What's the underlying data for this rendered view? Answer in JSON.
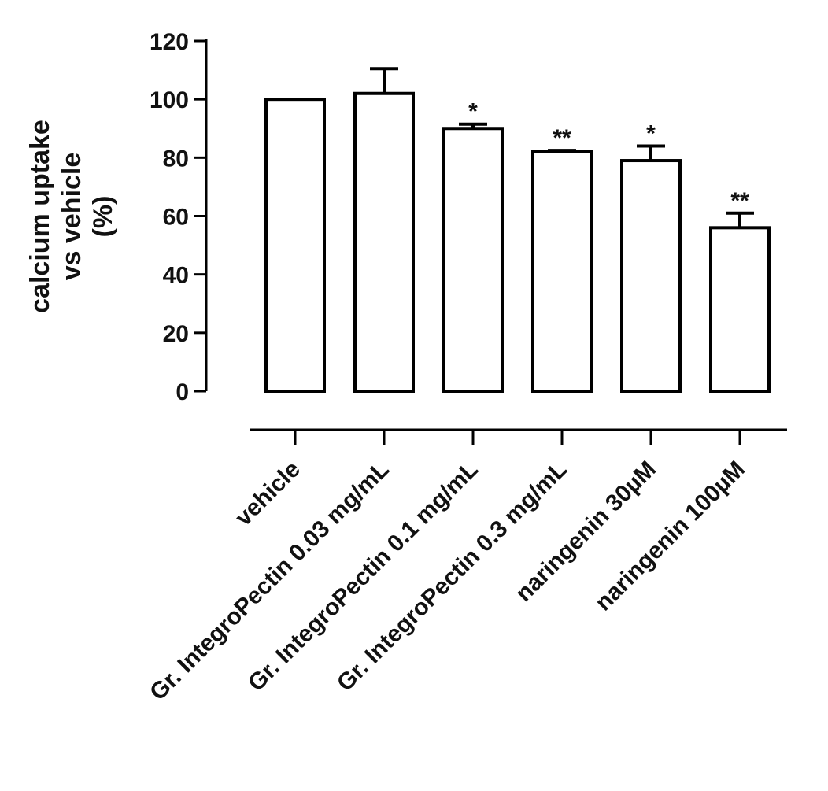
{
  "chart_data": {
    "type": "bar",
    "ylabel": [
      "calcium uptake",
      "vs vehicle",
      "(%)"
    ],
    "xlabel": "",
    "ylim": [
      0,
      120
    ],
    "yticks": [
      "0",
      "20",
      "40",
      "60",
      "80",
      "100",
      "120"
    ],
    "categories": [
      "vehicle",
      "Gr. IntegroPectin 0.03 mg/mL",
      "Gr. IntegroPectin 0.1 mg/mL",
      "Gr. IntegroPectin 0.3 mg/mL",
      "naringenin 30µM",
      "naringenin 100µM"
    ],
    "series": [
      {
        "values": [
          100,
          102,
          90,
          82,
          79,
          56
        ],
        "errors": [
          0,
          8.5,
          1.5,
          0.5,
          5,
          5
        ]
      }
    ],
    "significance": [
      "",
      "",
      "*",
      "**",
      "*",
      "**"
    ],
    "bar_fill": "#ffffff",
    "bar_stroke": "#000000",
    "grid": false,
    "legend": "none"
  }
}
